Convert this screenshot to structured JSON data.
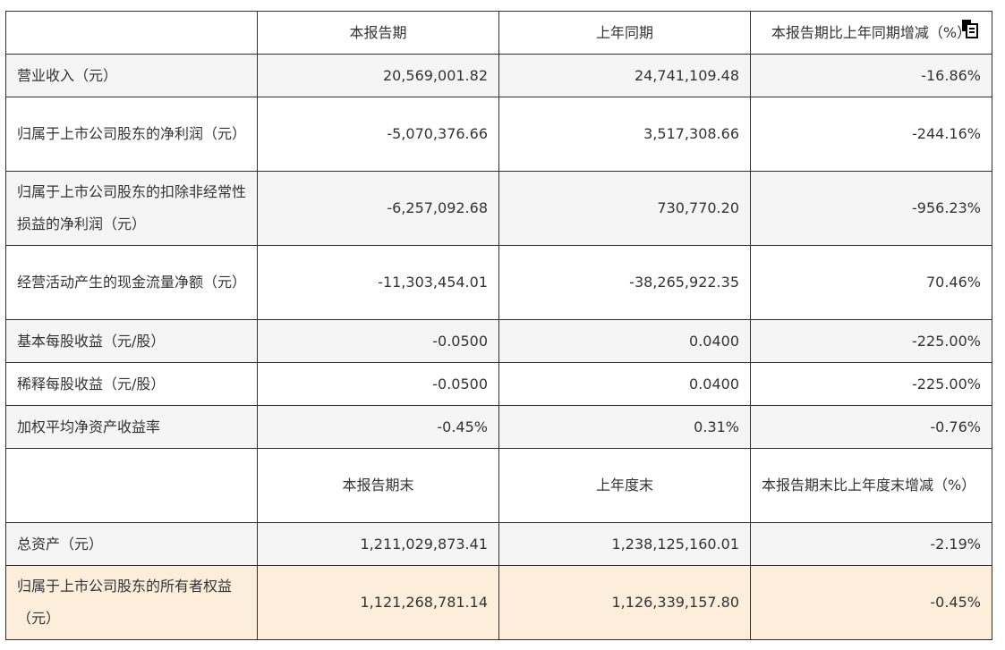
{
  "table": {
    "header1": {
      "col1": "",
      "col2": "本报告期",
      "col3": "上年同期",
      "col4": "本报告期比上年同期增减（%）"
    },
    "rows1": [
      {
        "label": "营业收入（元）",
        "cur": "20,569,001.82",
        "prev": "24,741,109.48",
        "chg": "-16.86%"
      },
      {
        "label": "归属于上市公司股东的净利润（元）",
        "cur": "-5,070,376.66",
        "prev": "3,517,308.66",
        "chg": "-244.16%"
      },
      {
        "label": "归属于上市公司股东的扣除非经常性损益的净利润（元）",
        "cur": "-6,257,092.68",
        "prev": "730,770.20",
        "chg": "-956.23%"
      },
      {
        "label": "经营活动产生的现金流量净额（元）",
        "cur": "-11,303,454.01",
        "prev": "-38,265,922.35",
        "chg": "70.46%"
      },
      {
        "label": "基本每股收益（元/股）",
        "cur": "-0.0500",
        "prev": "0.0400",
        "chg": "-225.00%"
      },
      {
        "label": "稀释每股收益（元/股）",
        "cur": "-0.0500",
        "prev": "0.0400",
        "chg": "-225.00%"
      },
      {
        "label": "加权平均净资产收益率",
        "cur": "-0.45%",
        "prev": "0.31%",
        "chg": "-0.76%"
      }
    ],
    "header2": {
      "col1": "",
      "col2": "本报告期末",
      "col3": "上年度末",
      "col4": "本报告期末比上年度末增减（%）"
    },
    "rows2": [
      {
        "label": "总资产（元）",
        "cur": "1,211,029,873.41",
        "prev": "1,238,125,160.01",
        "chg": "-2.19%"
      },
      {
        "label": "归属于上市公司股东的所有者权益（元）",
        "cur": "1,121,268,781.14",
        "prev": "1,126,339,157.80",
        "chg": "-0.45%"
      }
    ]
  },
  "copy_icon": "copy-icon",
  "colors": {
    "highlight_row": "#fdeedc",
    "stripe_row": "#f5f5f5",
    "border": "#2f2f2f"
  }
}
